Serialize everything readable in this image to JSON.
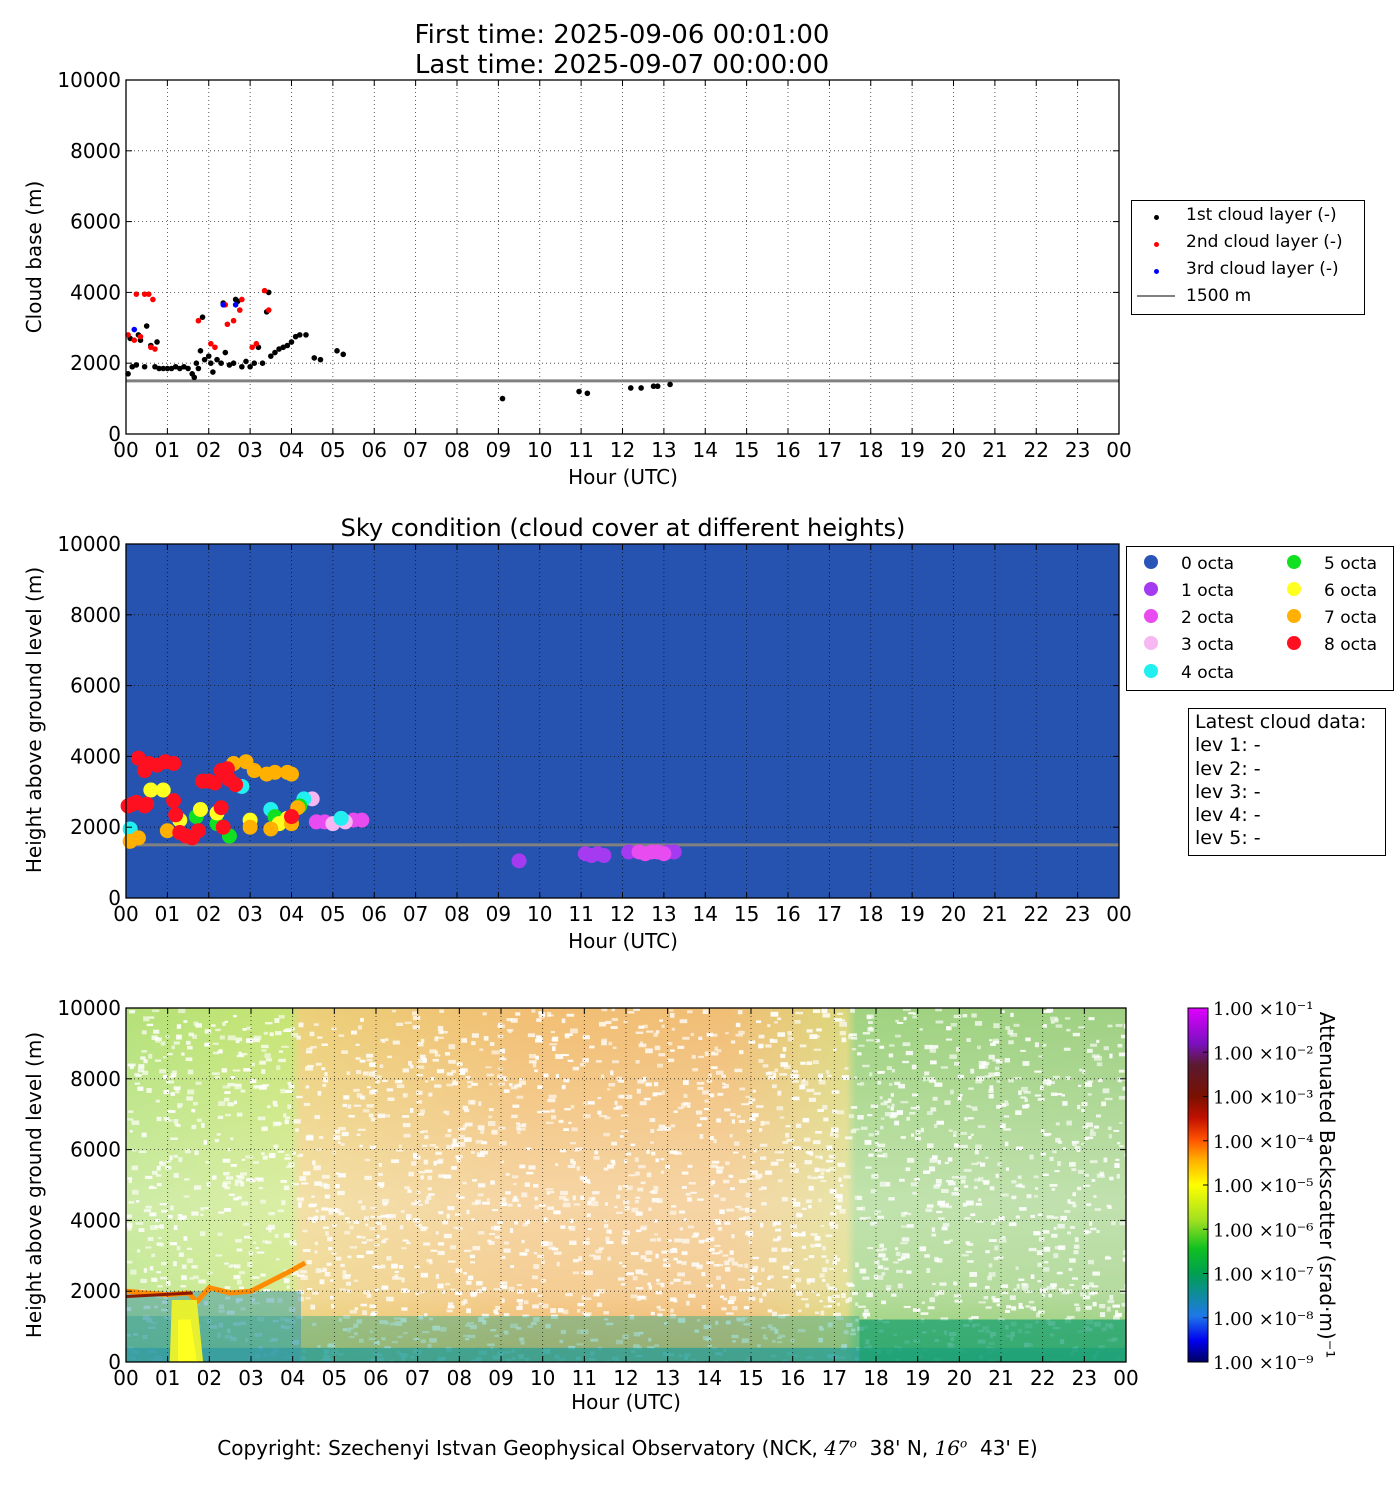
{
  "header": {
    "first_time": "First time: 2025-09-06 00:01:00",
    "last_time": "Last time: 2025-09-07 00:00:00"
  },
  "legend1": {
    "items": [
      {
        "label": "1st cloud layer (-)",
        "color": "#000000"
      },
      {
        "label": "2nd cloud layer (-)",
        "color": "#ff0000"
      },
      {
        "label": "3rd cloud layer (-)",
        "color": "#0000ff"
      },
      {
        "label": "1500 m",
        "color": "#808080"
      }
    ]
  },
  "legend2": {
    "items": [
      {
        "label": "0 octa",
        "color": "#2a55b8"
      },
      {
        "label": "1 octa",
        "color": "#a53bf0"
      },
      {
        "label": "2 octa",
        "color": "#e84cf0"
      },
      {
        "label": "3 octa",
        "color": "#f7b7f2"
      },
      {
        "label": "4 octa",
        "color": "#22f0f0"
      },
      {
        "label": "5 octa",
        "color": "#10e020"
      },
      {
        "label": "6 octa",
        "color": "#ffff20"
      },
      {
        "label": "7 octa",
        "color": "#ffb000"
      },
      {
        "label": "8 octa",
        "color": "#ff1020"
      }
    ]
  },
  "latest": {
    "title": "Latest cloud data:",
    "levels": [
      "lev 1: -",
      "lev 2: -",
      "lev 3: -",
      "lev 4: -",
      "lev 5: -"
    ]
  },
  "colorbar": {
    "label": "Attenuated Backscatter (srad·m)⁻¹",
    "ticks": [
      "1.00 ×10⁻¹",
      "1.00 ×10⁻²",
      "1.00 ×10⁻³",
      "1.00 ×10⁻⁴",
      "1.00 ×10⁻⁵",
      "1.00 ×10⁻⁶",
      "1.00 ×10⁻⁷",
      "1.00 ×10⁻⁸",
      "1.00 ×10⁻⁹"
    ]
  },
  "footer": {
    "prefix": "Copyright: Szechenyi Istvan Geophysical Observatory (NCK, ",
    "lat_deg": "47",
    "lat_min": "38' N, ",
    "lon_deg": "16",
    "lon_min": "43' E)"
  },
  "chart_data": [
    {
      "type": "scatter",
      "title": "",
      "xlabel": "Hour (UTC)",
      "ylabel": "Cloud base (m)",
      "x_ticks": [
        "00",
        "01",
        "02",
        "03",
        "04",
        "05",
        "06",
        "07",
        "08",
        "09",
        "10",
        "11",
        "12",
        "13",
        "14",
        "15",
        "16",
        "17",
        "18",
        "19",
        "20",
        "21",
        "22",
        "23",
        "00"
      ],
      "xlim": [
        0,
        24
      ],
      "ylim": [
        0,
        10000
      ],
      "y_ticks": [
        0,
        2000,
        4000,
        6000,
        8000,
        10000
      ],
      "grid": true,
      "legend_position": "right",
      "reference_line": {
        "name": "1500 m",
        "y": 1500
      },
      "series": [
        {
          "name": "1st cloud layer (-)",
          "color": "#000000",
          "points": [
            [
              0.05,
              1700
            ],
            [
              0.1,
              2700
            ],
            [
              0.15,
              1900
            ],
            [
              0.25,
              1950
            ],
            [
              0.3,
              2800
            ],
            [
              0.35,
              2650
            ],
            [
              0.45,
              1900
            ],
            [
              0.5,
              3050
            ],
            [
              0.6,
              2500
            ],
            [
              0.7,
              1900
            ],
            [
              0.75,
              2600
            ],
            [
              0.8,
              1850
            ],
            [
              0.9,
              1850
            ],
            [
              1.0,
              1850
            ],
            [
              1.1,
              1850
            ],
            [
              1.2,
              1900
            ],
            [
              1.3,
              1850
            ],
            [
              1.4,
              1900
            ],
            [
              1.5,
              1850
            ],
            [
              1.6,
              1700
            ],
            [
              1.65,
              1600
            ],
            [
              1.7,
              2000
            ],
            [
              1.75,
              1850
            ],
            [
              1.8,
              2350
            ],
            [
              1.85,
              3300
            ],
            [
              1.9,
              2100
            ],
            [
              2.0,
              2200
            ],
            [
              2.05,
              2000
            ],
            [
              2.1,
              1750
            ],
            [
              2.2,
              2100
            ],
            [
              2.3,
              2000
            ],
            [
              2.35,
              3700
            ],
            [
              2.4,
              2300
            ],
            [
              2.5,
              1950
            ],
            [
              2.6,
              2000
            ],
            [
              2.65,
              3800
            ],
            [
              2.7,
              3750
            ],
            [
              2.8,
              1900
            ],
            [
              2.9,
              2050
            ],
            [
              3.0,
              1900
            ],
            [
              3.1,
              2000
            ],
            [
              3.2,
              2450
            ],
            [
              3.3,
              2000
            ],
            [
              3.4,
              3450
            ],
            [
              3.45,
              4000
            ],
            [
              3.5,
              2200
            ],
            [
              3.6,
              2300
            ],
            [
              3.7,
              2400
            ],
            [
              3.8,
              2450
            ],
            [
              3.9,
              2500
            ],
            [
              4.0,
              2600
            ],
            [
              4.1,
              2750
            ],
            [
              4.2,
              2800
            ],
            [
              4.35,
              2800
            ],
            [
              4.55,
              2150
            ],
            [
              4.7,
              2100
            ],
            [
              5.1,
              2350
            ],
            [
              5.25,
              2250
            ],
            [
              9.1,
              1000
            ],
            [
              10.95,
              1200
            ],
            [
              11.15,
              1150
            ],
            [
              12.2,
              1300
            ],
            [
              12.45,
              1300
            ],
            [
              12.75,
              1350
            ],
            [
              12.85,
              1350
            ],
            [
              13.15,
              1400
            ]
          ]
        },
        {
          "name": "2nd cloud layer (-)",
          "color": "#ff0000",
          "points": [
            [
              0.05,
              2800
            ],
            [
              0.2,
              2650
            ],
            [
              0.25,
              3950
            ],
            [
              0.35,
              2750
            ],
            [
              0.45,
              3950
            ],
            [
              0.55,
              3950
            ],
            [
              0.6,
              2450
            ],
            [
              0.65,
              3800
            ],
            [
              0.7,
              2400
            ],
            [
              1.75,
              3200
            ],
            [
              2.05,
              2550
            ],
            [
              2.15,
              2450
            ],
            [
              2.4,
              3650
            ],
            [
              2.45,
              3100
            ],
            [
              2.6,
              3200
            ],
            [
              2.8,
              3800
            ],
            [
              2.75,
              3500
            ],
            [
              3.05,
              2450
            ],
            [
              3.15,
              2550
            ],
            [
              3.35,
              4050
            ],
            [
              3.45,
              3500
            ]
          ]
        },
        {
          "name": "3rd cloud layer (-)",
          "color": "#0000ff",
          "points": [
            [
              0.2,
              2950
            ],
            [
              2.35,
              3650
            ],
            [
              2.65,
              3650
            ]
          ]
        }
      ]
    },
    {
      "type": "scatter",
      "title": "Sky condition (cloud cover at different heights)",
      "xlabel": "Hour (UTC)",
      "ylabel": "Height above ground level (m)",
      "x_ticks": [
        "00",
        "01",
        "02",
        "03",
        "04",
        "05",
        "06",
        "07",
        "08",
        "09",
        "10",
        "11",
        "12",
        "13",
        "14",
        "15",
        "16",
        "17",
        "18",
        "19",
        "20",
        "21",
        "22",
        "23",
        "00"
      ],
      "xlim": [
        0,
        24
      ],
      "ylim": [
        0,
        10000
      ],
      "y_ticks": [
        0,
        2000,
        4000,
        6000,
        8000,
        10000
      ],
      "grid": true,
      "background_color": "#2653b0",
      "legend_position": "right",
      "reference_line": {
        "y": 1500
      },
      "series": [
        {
          "name": "1 octa",
          "color": "#a53bf0",
          "points": [
            [
              9.5,
              1050
            ],
            [
              11.1,
              1250
            ],
            [
              11.25,
              1200
            ],
            [
              11.4,
              1250
            ],
            [
              11.55,
              1200
            ],
            [
              12.15,
              1300
            ],
            [
              13.1,
              1300
            ],
            [
              13.25,
              1300
            ]
          ]
        },
        {
          "name": "2 octa",
          "color": "#e84cf0",
          "points": [
            [
              4.6,
              2150
            ],
            [
              4.8,
              2150
            ],
            [
              5.5,
              2200
            ],
            [
              5.7,
              2200
            ],
            [
              12.4,
              1300
            ],
            [
              12.55,
              1250
            ],
            [
              12.7,
              1300
            ],
            [
              12.85,
              1300
            ],
            [
              13.0,
              1250
            ]
          ]
        },
        {
          "name": "3 octa",
          "color": "#f7b7f2",
          "points": [
            [
              4.5,
              2800
            ],
            [
              5.0,
              2100
            ],
            [
              5.3,
              2150
            ]
          ]
        },
        {
          "name": "4 octa",
          "color": "#22f0f0",
          "points": [
            [
              0.1,
              1950
            ],
            [
              2.8,
              3150
            ],
            [
              3.5,
              2500
            ],
            [
              4.3,
              2800
            ],
            [
              5.2,
              2250
            ]
          ]
        },
        {
          "name": "5 octa",
          "color": "#10e020",
          "points": [
            [
              1.7,
              2300
            ],
            [
              2.2,
              2100
            ],
            [
              2.5,
              1750
            ],
            [
              3.6,
              2300
            ],
            [
              4.2,
              2600
            ]
          ]
        },
        {
          "name": "6 octa",
          "color": "#ffff20",
          "points": [
            [
              0.6,
              3050
            ],
            [
              0.9,
              3050
            ],
            [
              1.3,
              2200
            ],
            [
              1.8,
              2500
            ],
            [
              2.2,
              2400
            ],
            [
              3.0,
              2200
            ],
            [
              3.7,
              2100
            ],
            [
              3.9,
              2250
            ]
          ]
        },
        {
          "name": "7 octa",
          "color": "#ffb000",
          "points": [
            [
              0.1,
              1600
            ],
            [
              0.3,
              1700
            ],
            [
              1.0,
              1900
            ],
            [
              2.6,
              3800
            ],
            [
              2.9,
              3850
            ],
            [
              3.1,
              3600
            ],
            [
              3.4,
              3500
            ],
            [
              3.6,
              3550
            ],
            [
              3.9,
              3550
            ],
            [
              4.0,
              3500
            ],
            [
              3.0,
              2000
            ],
            [
              3.5,
              1950
            ],
            [
              4.0,
              2100
            ],
            [
              4.15,
              2550
            ]
          ]
        },
        {
          "name": "8 octa",
          "color": "#ff1020",
          "points": [
            [
              0.05,
              2600
            ],
            [
              0.15,
              2650
            ],
            [
              0.25,
              2700
            ],
            [
              0.3,
              3950
            ],
            [
              0.45,
              3600
            ],
            [
              0.55,
              3800
            ],
            [
              0.75,
              3750
            ],
            [
              0.95,
              3850
            ],
            [
              1.15,
              3800
            ],
            [
              0.45,
              2600
            ],
            [
              0.5,
              2650
            ],
            [
              1.15,
              2750
            ],
            [
              1.2,
              2350
            ],
            [
              1.3,
              1850
            ],
            [
              1.45,
              1750
            ],
            [
              1.6,
              1700
            ],
            [
              1.75,
              1900
            ],
            [
              1.85,
              3300
            ],
            [
              2.0,
              3300
            ],
            [
              2.15,
              3250
            ],
            [
              2.3,
              3600
            ],
            [
              2.45,
              3650
            ],
            [
              2.5,
              3350
            ],
            [
              2.65,
              3200
            ],
            [
              2.3,
              2550
            ],
            [
              2.35,
              2000
            ],
            [
              4.0,
              2300
            ]
          ]
        }
      ]
    },
    {
      "type": "heatmap",
      "title": "",
      "xlabel": "Hour (UTC)",
      "ylabel": "Height above ground level (m)",
      "x_ticks": [
        "00",
        "01",
        "02",
        "03",
        "04",
        "05",
        "06",
        "07",
        "08",
        "09",
        "10",
        "11",
        "12",
        "13",
        "14",
        "15",
        "16",
        "17",
        "18",
        "19",
        "20",
        "21",
        "22",
        "23",
        "00"
      ],
      "xlim": [
        0,
        24
      ],
      "ylim": [
        0,
        10000
      ],
      "y_ticks": [
        0,
        2000,
        4000,
        6000,
        8000,
        10000
      ],
      "colorbar_range": [
        "1e-9",
        "1e-1"
      ],
      "colorbar_scale": "log"
    }
  ]
}
